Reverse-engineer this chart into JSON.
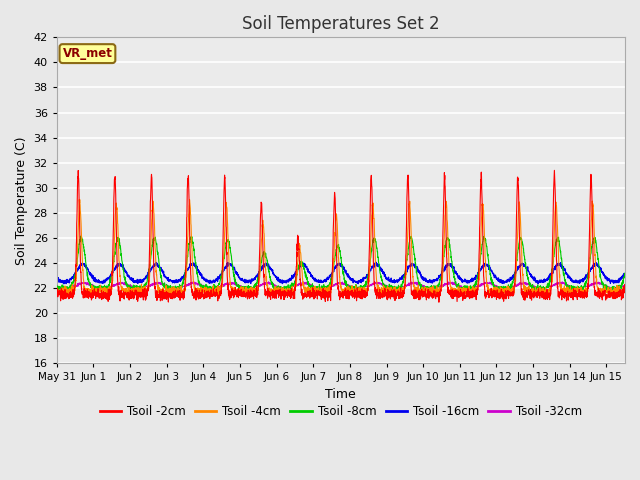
{
  "title": "Soil Temperatures Set 2",
  "xlabel": "Time",
  "ylabel": "Soil Temperature (C)",
  "ylim": [
    16,
    42
  ],
  "yticks": [
    16,
    18,
    20,
    22,
    24,
    26,
    28,
    30,
    32,
    34,
    36,
    38,
    40,
    42
  ],
  "background_color": "#e8e8e8",
  "plot_bg_color": "#ebebeb",
  "line_colors": {
    "2cm": "#ff0000",
    "4cm": "#ff8800",
    "8cm": "#00cc00",
    "16cm": "#0000ee",
    "32cm": "#cc00cc"
  },
  "legend_labels": [
    "Tsoil -2cm",
    "Tsoil -4cm",
    "Tsoil -8cm",
    "Tsoil -16cm",
    "Tsoil -32cm"
  ],
  "station_label": "VR_met",
  "num_days": 15.5,
  "figsize": [
    6.4,
    4.8
  ],
  "dpi": 100
}
